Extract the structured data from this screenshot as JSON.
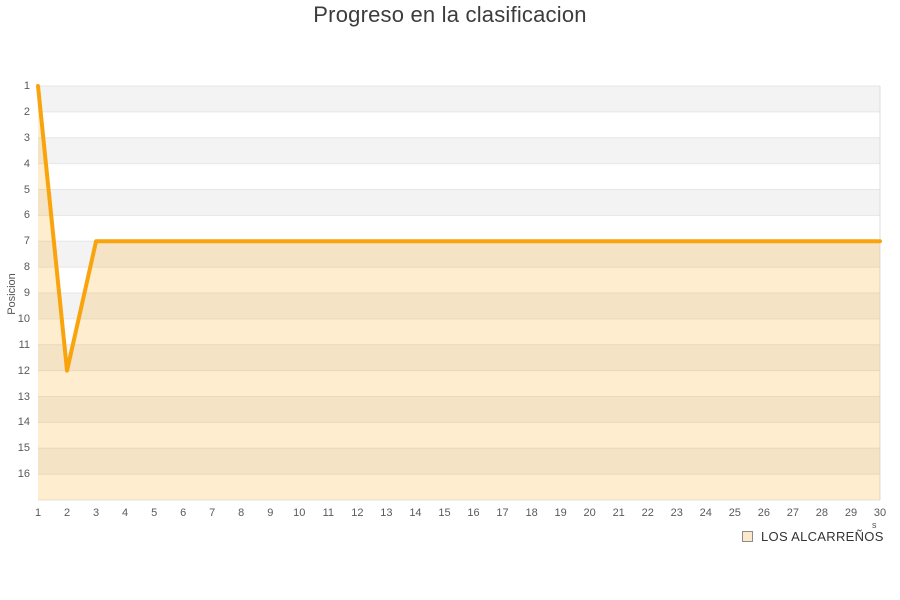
{
  "page": {
    "title": "Progreso en la clasificacion",
    "background": "#ffffff"
  },
  "chart_data": {
    "type": "area",
    "title": "Progreso en la clasificacion",
    "xlabel": "",
    "ylabel": "Posicion",
    "x": [
      1,
      2,
      3,
      4,
      5,
      6,
      7,
      8,
      9,
      10,
      11,
      12,
      13,
      14,
      15,
      16,
      17,
      18,
      19,
      20,
      21,
      22,
      23,
      24,
      25,
      26,
      27,
      28,
      29,
      30
    ],
    "series": [
      {
        "name": "LOS ALCARREÑOS",
        "values": [
          1,
          12,
          7,
          7,
          7,
          7,
          7,
          7,
          7,
          7,
          7,
          7,
          7,
          7,
          7,
          7,
          7,
          7,
          7,
          7,
          7,
          7,
          7,
          7,
          7,
          7,
          7,
          7,
          7,
          7
        ],
        "color": "#F9A40D",
        "fill_opacity": 0.2,
        "line_width": 4
      }
    ],
    "y_ticks": [
      1,
      2,
      3,
      4,
      5,
      6,
      7,
      8,
      9,
      10,
      11,
      12,
      13,
      14,
      15,
      16
    ],
    "ylim": [
      1,
      17
    ],
    "xlim": [
      1,
      30
    ],
    "y_inverted": true,
    "grid": true,
    "band_color_odd": "#F3F3F3",
    "band_color_even": "#FFFFFF",
    "gridline_color": "#E6E6E6",
    "plot_border_color": "#DCDCDC",
    "legend_position": "bottom-right"
  },
  "legend": {
    "label": "LOS ALCARREÑOS",
    "swatch_fill": "#FAE9CB",
    "swatch_border": "#8C8C8C",
    "fragment": "s"
  }
}
